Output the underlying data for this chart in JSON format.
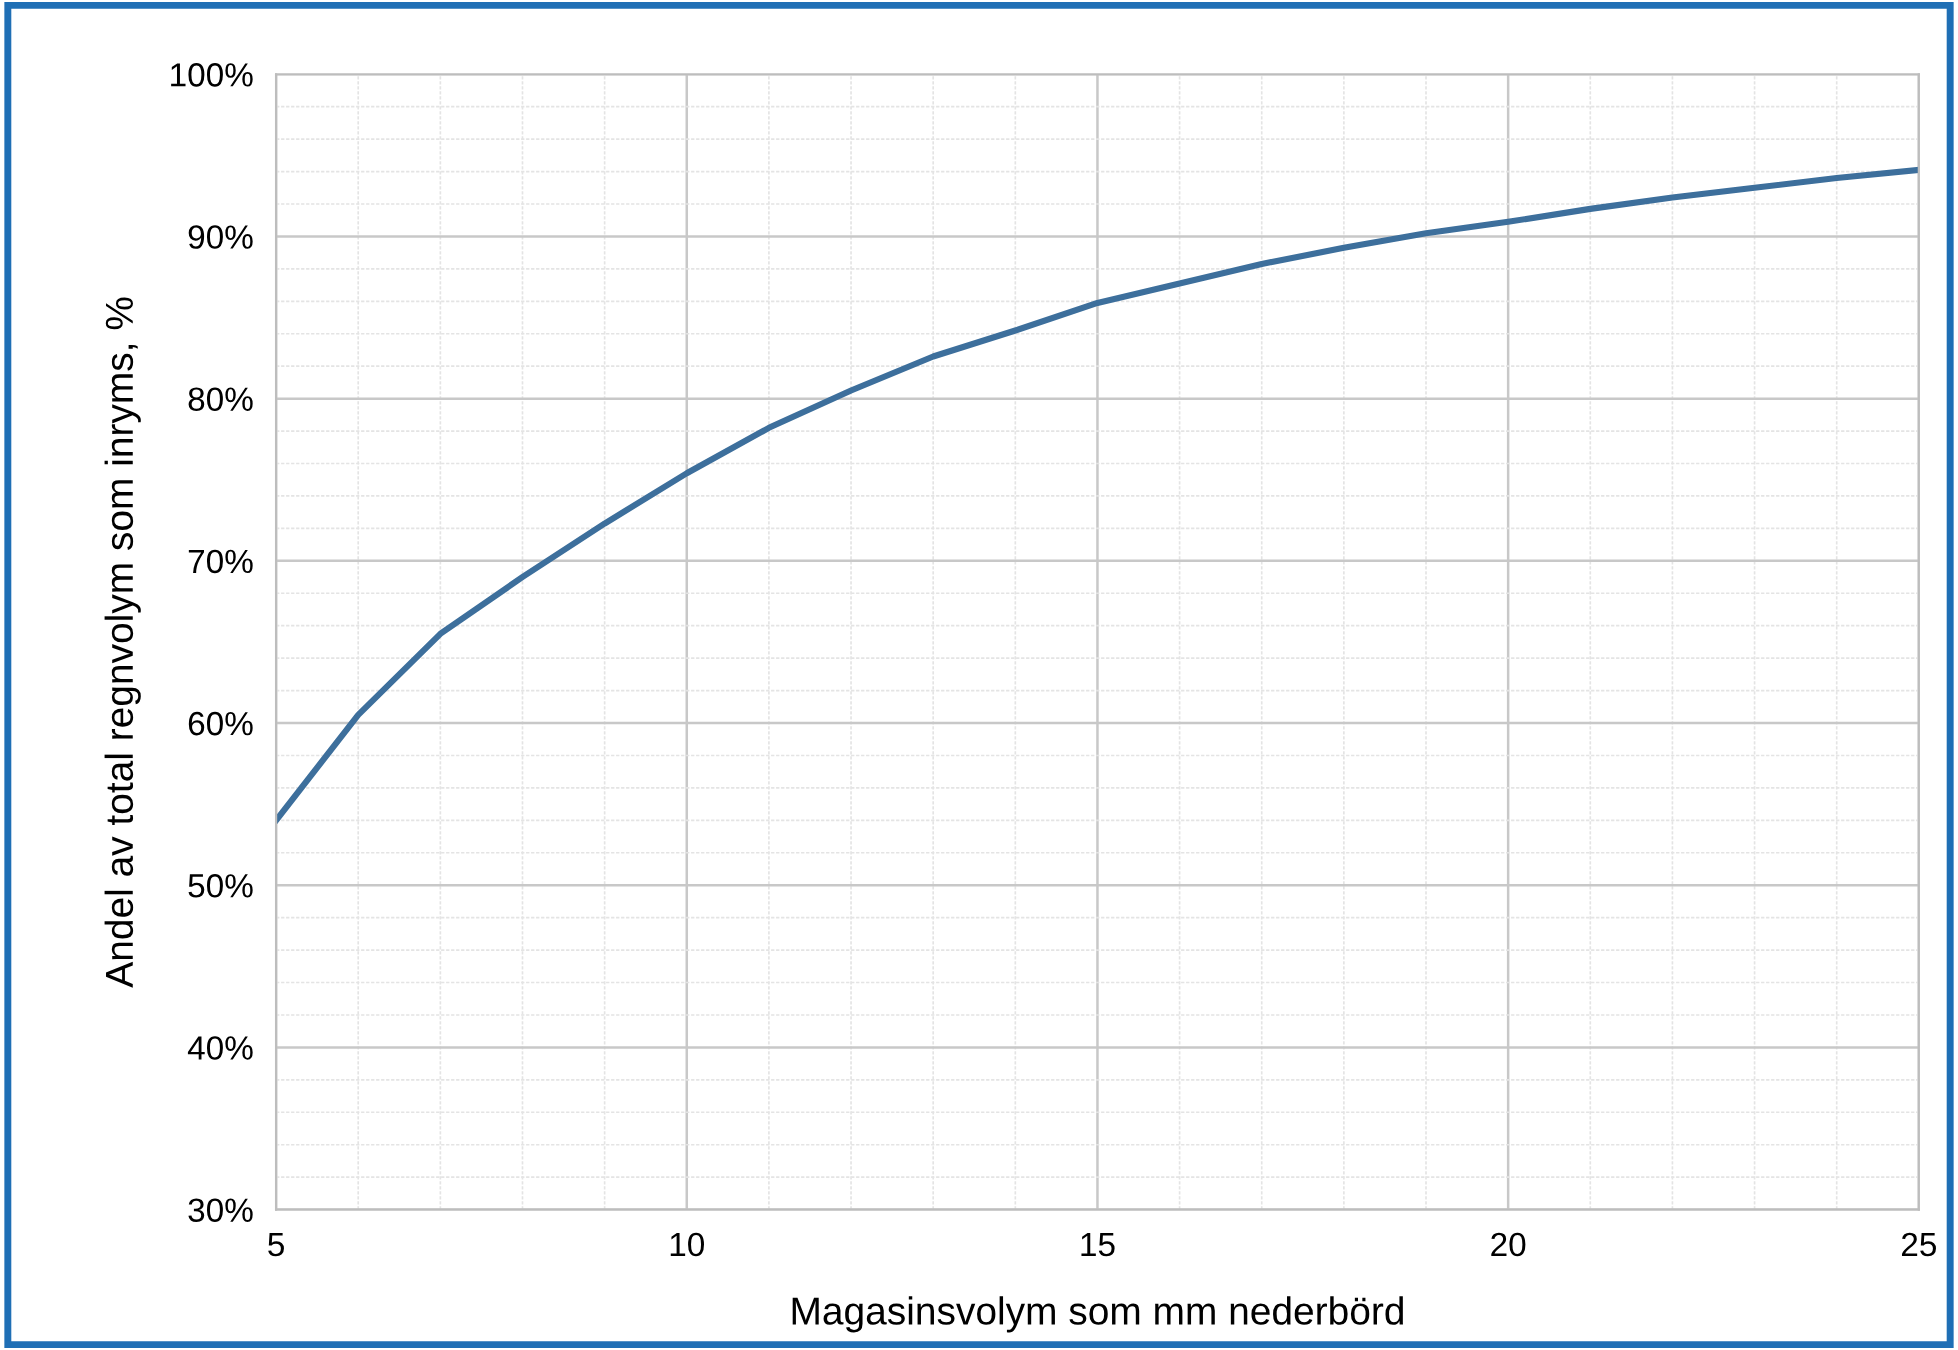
{
  "chart_data": {
    "type": "line",
    "xlabel": "Magasinsvolym som mm nederbörd",
    "ylabel": "Andel av total regnvolym som inryms, %",
    "x": [
      5,
      6,
      7,
      8,
      9,
      10,
      11,
      12,
      13,
      14,
      15,
      16,
      17,
      18,
      19,
      20,
      21,
      22,
      23,
      24,
      25
    ],
    "series": [
      {
        "color": "#3d6f9c",
        "values": [
          54,
          60.5,
          65.5,
          69,
          72.3,
          75.4,
          78.2,
          80.5,
          82.6,
          84.2,
          85.9,
          87.1,
          88.3,
          89.3,
          90.2,
          90.9,
          91.7,
          92.4,
          93,
          93.6,
          94.1
        ]
      }
    ],
    "xlim": [
      5,
      25
    ],
    "xticks": [
      5,
      10,
      15,
      20,
      25
    ],
    "ylim": [
      30,
      100
    ],
    "yticks": [
      {
        "value": 30,
        "label": "30%"
      },
      {
        "value": 40,
        "label": "40%"
      },
      {
        "value": 50,
        "label": "50%"
      },
      {
        "value": 60,
        "label": "60%"
      },
      {
        "value": 70,
        "label": "70%"
      },
      {
        "value": 80,
        "label": "80%"
      },
      {
        "value": 90,
        "label": "90%"
      },
      {
        "value": 100,
        "label": "100%"
      }
    ],
    "grid": true,
    "marker": "none",
    "line_style": "solid"
  }
}
